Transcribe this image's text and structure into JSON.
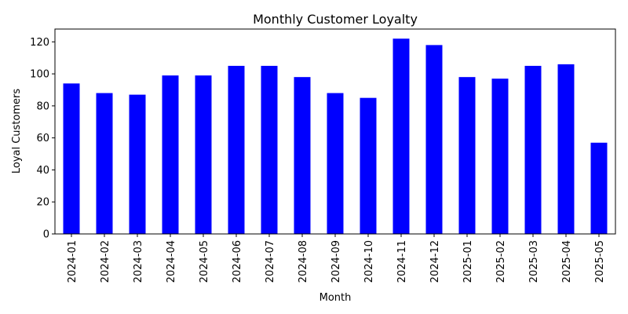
{
  "chart_data": {
    "type": "bar",
    "title": "Monthly Customer Loyalty",
    "xlabel": "Month",
    "ylabel": "Loyal Customers",
    "categories": [
      "2024-01",
      "2024-02",
      "2024-03",
      "2024-04",
      "2024-05",
      "2024-06",
      "2024-07",
      "2024-08",
      "2024-09",
      "2024-10",
      "2024-11",
      "2024-12",
      "2025-01",
      "2025-02",
      "2025-03",
      "2025-04",
      "2025-05"
    ],
    "values": [
      94,
      88,
      87,
      99,
      99,
      105,
      105,
      98,
      88,
      85,
      122,
      118,
      98,
      97,
      105,
      106,
      57
    ],
    "ylim": [
      0,
      128
    ],
    "yticks": [
      0,
      20,
      40,
      60,
      80,
      100,
      120
    ],
    "grid": false,
    "bar_color": "#0000ff"
  }
}
